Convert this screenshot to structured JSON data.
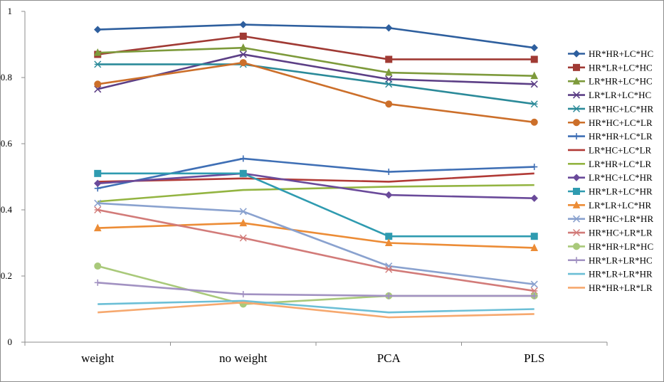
{
  "chart_data": {
    "type": "line",
    "categories": [
      "weight",
      "no weight",
      "PCA",
      "PLS"
    ],
    "ylim": [
      0,
      1
    ],
    "yticks": [
      "0",
      "0.2",
      "0.4",
      "0.6",
      "0.8",
      "1"
    ],
    "ytick_values": [
      0,
      0.2,
      0.4,
      0.6,
      0.8,
      1
    ],
    "grid": false,
    "legend_position": "right",
    "series": [
      {
        "name": "HR*HR+LC*HC",
        "color": "#2e5f9e",
        "marker": "diamond",
        "values": [
          0.945,
          0.96,
          0.95,
          0.89
        ]
      },
      {
        "name": "HR*LR+LC*HC",
        "color": "#a03a34",
        "marker": "square",
        "values": [
          0.87,
          0.925,
          0.855,
          0.855
        ]
      },
      {
        "name": "LR*HR+LC*HC",
        "color": "#7d9a3b",
        "marker": "triangle",
        "values": [
          0.875,
          0.89,
          0.815,
          0.805
        ]
      },
      {
        "name": "LR*LR+LC*HC",
        "color": "#5c3f86",
        "marker": "x",
        "values": [
          0.765,
          0.87,
          0.795,
          0.78
        ]
      },
      {
        "name": "HR*HC+LC*HR",
        "color": "#2b8a99",
        "marker": "asterisk",
        "values": [
          0.84,
          0.84,
          0.78,
          0.72
        ]
      },
      {
        "name": "HR*HC+LC*LR",
        "color": "#cc6f2a",
        "marker": "circle",
        "values": [
          0.78,
          0.845,
          0.72,
          0.665
        ]
      },
      {
        "name": "HR*HR+LC*LR",
        "color": "#3f6fb5",
        "marker": "plus",
        "values": [
          0.465,
          0.555,
          0.515,
          0.53
        ]
      },
      {
        "name": "LR*HC+LC*LR",
        "color": "#b13a36",
        "marker": "none",
        "values": [
          0.485,
          0.495,
          0.485,
          0.51
        ]
      },
      {
        "name": "LR*HR+LC*LR",
        "color": "#93b441",
        "marker": "none",
        "values": [
          0.425,
          0.46,
          0.47,
          0.475
        ]
      },
      {
        "name": "LR*HC+LC*HR",
        "color": "#6a4a9a",
        "marker": "diamond",
        "values": [
          0.48,
          0.51,
          0.445,
          0.435
        ]
      },
      {
        "name": "HR*LR+LC*HR",
        "color": "#2f9bb0",
        "marker": "square",
        "values": [
          0.51,
          0.51,
          0.32,
          0.32
        ]
      },
      {
        "name": "LR*LR+LC*HR",
        "color": "#ec8c36",
        "marker": "triangle",
        "values": [
          0.345,
          0.36,
          0.3,
          0.285
        ]
      },
      {
        "name": "HR*HC+LR*HR",
        "color": "#8aa2cf",
        "marker": "x",
        "values": [
          0.42,
          0.395,
          0.23,
          0.175
        ]
      },
      {
        "name": "HR*HC+LR*LR",
        "color": "#d27b79",
        "marker": "asterisk",
        "values": [
          0.4,
          0.315,
          0.22,
          0.155
        ]
      },
      {
        "name": "HR*HR+LR*HC",
        "color": "#a9c97a",
        "marker": "circle",
        "values": [
          0.23,
          0.115,
          0.14,
          0.14
        ]
      },
      {
        "name": "HR*LR+LR*HC",
        "color": "#a292c2",
        "marker": "plus",
        "values": [
          0.18,
          0.145,
          0.14,
          0.14
        ]
      },
      {
        "name": "HR*LR+LR*HR",
        "color": "#6cbfd6",
        "marker": "none",
        "values": [
          0.115,
          0.125,
          0.09,
          0.1
        ]
      },
      {
        "name": "HR*HR+LR*LR",
        "color": "#f6a86e",
        "marker": "none",
        "values": [
          0.09,
          0.12,
          0.075,
          0.085
        ]
      }
    ]
  }
}
